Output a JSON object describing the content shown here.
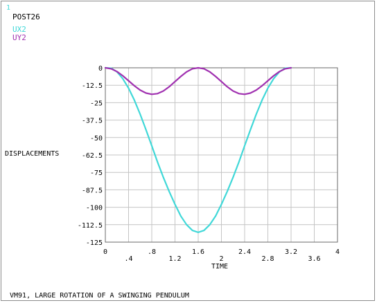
{
  "window_number": "1",
  "post_label": "POST26",
  "footer_title": "VM91, LARGE ROTATION OF A SWINGING PENDULUM",
  "chart_data": {
    "type": "line",
    "xlabel": "TIME",
    "ylabel": "DISPLACEMENTS",
    "xlim": [
      0,
      4
    ],
    "ylim": [
      -125,
      0
    ],
    "x_ticks_row1": [
      "0",
      ".8",
      "1.6",
      "2.4",
      "3.2",
      "4"
    ],
    "x_ticks_row2": [
      ".4",
      "1.2",
      "2",
      "2.8",
      "3.6"
    ],
    "y_ticks": [
      "0",
      "-12.5",
      "-25",
      "-37.5",
      "-50",
      "-62.5",
      "-75",
      "-87.5",
      "-100",
      "-112.5",
      "-125"
    ],
    "grid": true,
    "legend_position": "top-left",
    "series": [
      {
        "name": "UX2",
        "color": "#40d8d8",
        "x": [
          0,
          0.1,
          0.2,
          0.3,
          0.4,
          0.5,
          0.6,
          0.7,
          0.8,
          0.9,
          1.0,
          1.1,
          1.2,
          1.3,
          1.4,
          1.5,
          1.6,
          1.7,
          1.8,
          1.9,
          2.0,
          2.1,
          2.2,
          2.3,
          2.4,
          2.5,
          2.6,
          2.7,
          2.8,
          2.9,
          3.0,
          3.1,
          3.2
        ],
        "values": [
          0,
          -0.3,
          -2.9,
          -7.8,
          -14.6,
          -23.2,
          -33.3,
          -44.4,
          -55.9,
          -67.7,
          -78.6,
          -88.7,
          -97.9,
          -106.3,
          -112.5,
          -116.6,
          -118.0,
          -116.6,
          -112.5,
          -106.3,
          -97.9,
          -88.7,
          -78.6,
          -67.7,
          -55.9,
          -44.4,
          -33.3,
          -23.2,
          -14.6,
          -7.8,
          -2.9,
          -0.3,
          0
        ]
      },
      {
        "name": "UY2",
        "color": "#a030b0",
        "x": [
          0,
          0.1,
          0.2,
          0.3,
          0.4,
          0.5,
          0.6,
          0.7,
          0.8,
          0.9,
          1.0,
          1.1,
          1.2,
          1.3,
          1.4,
          1.5,
          1.6,
          1.7,
          1.8,
          1.9,
          2.0,
          2.1,
          2.2,
          2.3,
          2.4,
          2.5,
          2.6,
          2.7,
          2.8,
          2.9,
          3.0,
          3.1,
          3.2
        ],
        "values": [
          0,
          -0.7,
          -2.7,
          -5.7,
          -9.3,
          -12.9,
          -16.0,
          -18.1,
          -19.0,
          -18.5,
          -16.6,
          -13.6,
          -9.9,
          -6.2,
          -2.9,
          -0.7,
          0,
          -0.7,
          -2.9,
          -6.2,
          -9.9,
          -13.6,
          -16.6,
          -18.5,
          -19.0,
          -18.1,
          -16.0,
          -12.9,
          -9.3,
          -5.7,
          -2.7,
          -0.7,
          0
        ]
      }
    ]
  }
}
